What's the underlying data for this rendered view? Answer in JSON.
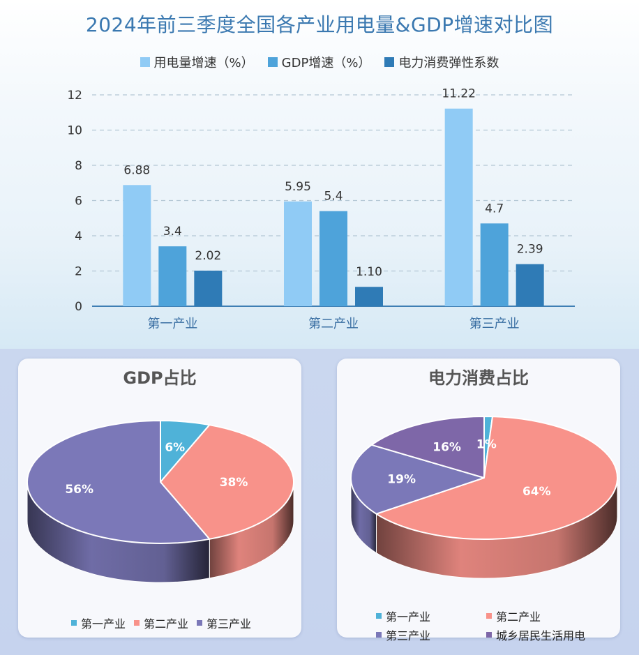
{
  "title": "2024年前三季度全国各产业用电量&GDP增速对比图",
  "colors": {
    "power_growth": "#90cbf5",
    "gdp_growth": "#4ea3da",
    "elasticity": "#2f7bb6",
    "pie_primary": "#4fb2d8",
    "pie_secondary": "#f8928a",
    "pie_tertiary": "#7b78b8",
    "pie_residential": "#7e67a8"
  },
  "chart_data": [
    {
      "type": "bar",
      "title": "2024年前三季度全国各产业用电量&GDP增速对比图",
      "categories": [
        "第一产业",
        "第二产业",
        "第三产业"
      ],
      "series": [
        {
          "name": "用电量增速（%）",
          "values": [
            6.88,
            5.95,
            11.22
          ],
          "labels": [
            "6.88",
            "5.95",
            "11.22"
          ]
        },
        {
          "name": "GDP增速（%）",
          "values": [
            3.4,
            5.4,
            4.7
          ],
          "labels": [
            "3.4",
            "5.4",
            "4.7"
          ]
        },
        {
          "name": "电力消费弹性系数",
          "values": [
            2.02,
            1.1,
            2.39
          ],
          "labels": [
            "2.02",
            "1.10",
            "2.39"
          ]
        }
      ],
      "yticks": [
        "0",
        "2",
        "4",
        "6",
        "8",
        "10",
        "12"
      ],
      "ylim": [
        0,
        12
      ],
      "grid": true,
      "legend": "top"
    },
    {
      "type": "pie",
      "title": "GDP占比",
      "labels": [
        "第一产业",
        "第二产业",
        "第三产业"
      ],
      "values": [
        6,
        38,
        56
      ],
      "value_labels": [
        "6%",
        "38%",
        "56%"
      ],
      "legend": "bottom"
    },
    {
      "type": "pie",
      "title": "电力消费占比",
      "labels": [
        "第一产业",
        "第二产业",
        "第三产业",
        "城乡居民生活用电"
      ],
      "values": [
        1,
        64,
        19,
        16
      ],
      "value_labels": [
        "1%",
        "64%",
        "19%",
        "16%"
      ],
      "legend": "bottom"
    }
  ]
}
